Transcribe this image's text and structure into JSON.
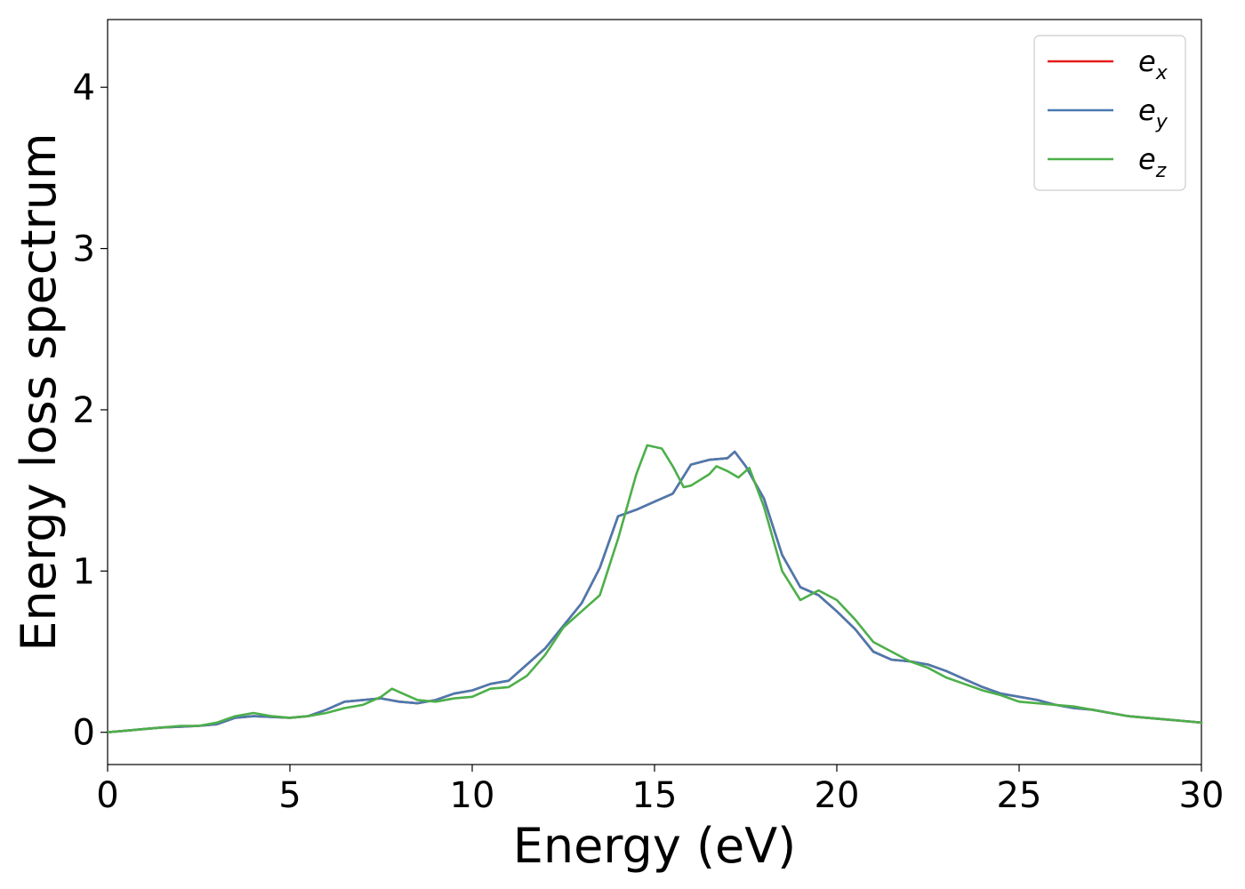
{
  "chart_data": {
    "type": "line",
    "xlabel": "Energy (eV)",
    "ylabel": "Energy loss spectrum",
    "xlim": [
      0,
      30
    ],
    "ylim": [
      -0.2,
      4.42
    ],
    "xticks": [
      0,
      5,
      10,
      15,
      20,
      25,
      30
    ],
    "yticks": [
      0,
      1,
      2,
      3,
      4
    ],
    "grid": false,
    "legend_position": "top-right",
    "series": [
      {
        "name": "e",
        "subscript": "x",
        "color": "#e41a1c",
        "x": [
          0,
          0.5,
          1,
          1.5,
          2,
          2.5,
          3,
          3.5,
          4,
          4.5,
          5,
          5.5,
          6,
          6.5,
          7,
          7.5,
          8,
          8.5,
          9,
          9.5,
          10,
          10.5,
          11,
          11.5,
          12,
          12.5,
          13,
          13.5,
          14,
          14.5,
          15,
          15.5,
          16,
          16.5,
          17,
          17.2,
          17.5,
          18,
          18.5,
          19,
          19.5,
          20,
          20.5,
          21,
          21.5,
          22,
          22.5,
          23,
          23.5,
          24,
          24.5,
          25,
          25.5,
          26,
          26.5,
          27,
          27.5,
          28,
          28.5,
          29,
          29.5,
          30
        ],
        "y": [
          0,
          0.01,
          0.02,
          0.03,
          0.035,
          0.04,
          0.05,
          0.09,
          0.1,
          0.095,
          0.09,
          0.1,
          0.14,
          0.19,
          0.2,
          0.21,
          0.19,
          0.18,
          0.2,
          0.24,
          0.26,
          0.3,
          0.32,
          0.42,
          0.52,
          0.66,
          0.8,
          1.02,
          1.34,
          1.38,
          1.43,
          1.48,
          1.66,
          1.69,
          1.7,
          1.74,
          1.65,
          1.45,
          1.1,
          0.9,
          0.85,
          0.75,
          0.64,
          0.5,
          0.45,
          0.44,
          0.42,
          0.38,
          0.33,
          0.28,
          0.24,
          0.22,
          0.2,
          0.17,
          0.15,
          0.14,
          0.12,
          0.1,
          0.09,
          0.08,
          0.07,
          0.06
        ]
      },
      {
        "name": "e",
        "subscript": "y",
        "color": "#4a7aaf",
        "x": [
          0,
          0.5,
          1,
          1.5,
          2,
          2.5,
          3,
          3.5,
          4,
          4.5,
          5,
          5.5,
          6,
          6.5,
          7,
          7.5,
          8,
          8.5,
          9,
          9.5,
          10,
          10.5,
          11,
          11.5,
          12,
          12.5,
          13,
          13.5,
          14,
          14.5,
          15,
          15.5,
          16,
          16.5,
          17,
          17.2,
          17.5,
          18,
          18.5,
          19,
          19.5,
          20,
          20.5,
          21,
          21.5,
          22,
          22.5,
          23,
          23.5,
          24,
          24.5,
          25,
          25.5,
          26,
          26.5,
          27,
          27.5,
          28,
          28.5,
          29,
          29.5,
          30
        ],
        "y": [
          0,
          0.01,
          0.02,
          0.03,
          0.035,
          0.04,
          0.05,
          0.09,
          0.1,
          0.095,
          0.09,
          0.1,
          0.14,
          0.19,
          0.2,
          0.21,
          0.19,
          0.18,
          0.2,
          0.24,
          0.26,
          0.3,
          0.32,
          0.42,
          0.52,
          0.66,
          0.8,
          1.02,
          1.34,
          1.38,
          1.43,
          1.48,
          1.66,
          1.69,
          1.7,
          1.74,
          1.65,
          1.45,
          1.1,
          0.9,
          0.85,
          0.75,
          0.64,
          0.5,
          0.45,
          0.44,
          0.42,
          0.38,
          0.33,
          0.28,
          0.24,
          0.22,
          0.2,
          0.17,
          0.15,
          0.14,
          0.12,
          0.1,
          0.09,
          0.08,
          0.07,
          0.06
        ]
      },
      {
        "name": "e",
        "subscript": "z",
        "color": "#4daf4a",
        "x": [
          0,
          0.5,
          1,
          1.5,
          2,
          2.5,
          3,
          3.5,
          4,
          4.5,
          5,
          5.5,
          6,
          6.5,
          7,
          7.5,
          7.8,
          8,
          8.5,
          9,
          9.5,
          10,
          10.5,
          11,
          11.5,
          12,
          12.5,
          13,
          13.5,
          14,
          14.5,
          14.8,
          15.2,
          15.5,
          15.8,
          16,
          16.5,
          16.7,
          17,
          17.3,
          17.6,
          18,
          18.5,
          19,
          19.5,
          20,
          20.5,
          21,
          21.5,
          22,
          22.5,
          23,
          23.5,
          24,
          24.5,
          25,
          25.5,
          26,
          26.5,
          27,
          27.5,
          28,
          28.5,
          29,
          29.5,
          30
        ],
        "y": [
          0,
          0.01,
          0.02,
          0.03,
          0.04,
          0.04,
          0.06,
          0.1,
          0.12,
          0.1,
          0.09,
          0.1,
          0.12,
          0.15,
          0.17,
          0.22,
          0.27,
          0.25,
          0.2,
          0.19,
          0.21,
          0.22,
          0.27,
          0.28,
          0.35,
          0.48,
          0.65,
          0.75,
          0.85,
          1.2,
          1.6,
          1.78,
          1.76,
          1.65,
          1.52,
          1.53,
          1.6,
          1.65,
          1.62,
          1.58,
          1.64,
          1.4,
          1.0,
          0.82,
          0.88,
          0.82,
          0.7,
          0.56,
          0.5,
          0.44,
          0.4,
          0.34,
          0.3,
          0.26,
          0.23,
          0.19,
          0.18,
          0.17,
          0.16,
          0.14,
          0.12,
          0.1,
          0.09,
          0.08,
          0.07,
          0.06
        ]
      }
    ]
  }
}
